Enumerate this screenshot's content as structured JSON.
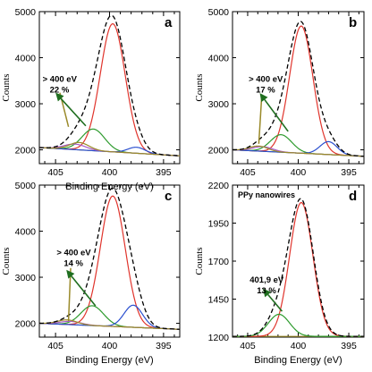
{
  "chart_data": [
    {
      "type": "line",
      "panel": "a",
      "xlabel": "Binding Energy (eV)",
      "ylabel": "Counts",
      "xlim": [
        406.5,
        393.5
      ],
      "ylim": [
        1700,
        5000
      ],
      "xticks": [
        405,
        400,
        395
      ],
      "yticks": [
        2000,
        3000,
        4000,
        5000
      ],
      "annotation": {
        "line1": "> 400 eV",
        "line2": "22 %",
        "x": 406.2,
        "y": 3480
      },
      "arrow": {
        "from": [
          402.2,
          2520
        ],
        "to": [
          405.0,
          3240
        ]
      },
      "guide_line": {
        "from": [
          403.8,
          2500
        ],
        "to": [
          404.6,
          3240
        ]
      },
      "baseline": {
        "x": [
          406.5,
          393.5
        ],
        "y": [
          2050,
          1870
        ]
      },
      "series": [
        {
          "role": "envelope",
          "color": "#000000",
          "dashed": true,
          "peaks": [
            {
              "c": 399.7,
              "h": 2820,
              "w": 1.25
            },
            {
              "c": 401.5,
              "h": 480,
              "w": 1.1
            },
            {
              "c": 403.0,
              "h": 270,
              "w": 1.0
            },
            {
              "c": 397.5,
              "h": 140,
              "w": 0.8
            }
          ]
        },
        {
          "role": "main",
          "color": "#e0342c",
          "peaks": [
            {
              "c": 399.7,
              "h": 2780,
              "w": 1.15
            }
          ]
        },
        {
          "role": "component-1",
          "color": "#2e9b2e",
          "peaks": [
            {
              "c": 401.5,
              "h": 470,
              "w": 1.05
            }
          ]
        },
        {
          "role": "component-2",
          "color": "#2a4fcf",
          "peaks": [
            {
              "c": 397.5,
              "h": 130,
              "w": 0.8
            }
          ]
        },
        {
          "role": "component-3",
          "color": "#a85ac8",
          "peaks": [
            {
              "c": 403.2,
              "h": 120,
              "w": 1.0
            }
          ]
        },
        {
          "role": "component-4",
          "color": "#9a8a2a",
          "peaks": [
            {
              "c": 402.8,
              "h": 160,
              "w": 0.9
            }
          ]
        }
      ]
    },
    {
      "type": "line",
      "panel": "b",
      "xlabel": "",
      "ylabel": "Counts",
      "xlim": [
        406.5,
        393.5
      ],
      "ylim": [
        1700,
        5000
      ],
      "xticks": [
        405,
        400,
        395
      ],
      "yticks": [
        2000,
        3000,
        4000,
        5000
      ],
      "annotation": {
        "line1": "> 400 eV",
        "line2": "17 %",
        "x": 404.9,
        "y": 3480
      },
      "arrow": {
        "from": [
          401.0,
          2400
        ],
        "to": [
          403.8,
          3230
        ]
      },
      "guide_line": {
        "from": [
          403.9,
          2130
        ],
        "to": [
          403.6,
          3200
        ]
      },
      "baseline": {
        "x": [
          406.5,
          393.5
        ],
        "y": [
          2000,
          1860
        ]
      },
      "series": [
        {
          "role": "envelope",
          "color": "#000000",
          "dashed": true,
          "peaks": [
            {
              "c": 399.7,
              "h": 2780,
              "w": 1.25
            },
            {
              "c": 401.7,
              "h": 380,
              "w": 1.1
            },
            {
              "c": 403.5,
              "h": 200,
              "w": 1.0
            },
            {
              "c": 397.0,
              "h": 280,
              "w": 0.9
            }
          ]
        },
        {
          "role": "main",
          "color": "#e0342c",
          "peaks": [
            {
              "c": 399.7,
              "h": 2760,
              "w": 1.15
            }
          ]
        },
        {
          "role": "component-1",
          "color": "#2e9b2e",
          "peaks": [
            {
              "c": 401.7,
              "h": 380,
              "w": 1.05
            }
          ]
        },
        {
          "role": "component-2",
          "color": "#2a4fcf",
          "peaks": [
            {
              "c": 397.0,
              "h": 280,
              "w": 0.85
            }
          ]
        },
        {
          "role": "component-3",
          "color": "#a85ac8",
          "peaks": [
            {
              "c": 403.5,
              "h": 100,
              "w": 1.0
            }
          ]
        },
        {
          "role": "component-4",
          "color": "#9a8a2a",
          "peaks": [
            {
              "c": 403.9,
              "h": 110,
              "w": 0.9
            }
          ]
        }
      ]
    },
    {
      "type": "line",
      "panel": "c",
      "xlabel": "Binding Energy (eV)",
      "ylabel": "Counts",
      "xlim": [
        406.5,
        393.5
      ],
      "ylim": [
        1700,
        5000
      ],
      "xticks": [
        405,
        400,
        395
      ],
      "yticks": [
        2000,
        3000,
        4000,
        5000
      ],
      "annotation": {
        "line1": "> 400 eV",
        "line2": "14 %",
        "x": 404.9,
        "y": 3480
      },
      "arrow": {
        "from": [
          401.3,
          2380
        ],
        "to": [
          404.0,
          3160
        ]
      },
      "guide_line": {
        "from": [
          403.8,
          2050
        ],
        "to": [
          403.6,
          3200
        ]
      },
      "baseline": {
        "x": [
          406.5,
          393.5
        ],
        "y": [
          2000,
          1870
        ]
      },
      "series": [
        {
          "role": "envelope",
          "color": "#000000",
          "dashed": true,
          "peaks": [
            {
              "c": 399.7,
              "h": 2850,
              "w": 1.25
            },
            {
              "c": 401.6,
              "h": 430,
              "w": 1.1
            },
            {
              "c": 403.6,
              "h": 130,
              "w": 1.0
            },
            {
              "c": 397.8,
              "h": 490,
              "w": 0.9
            }
          ]
        },
        {
          "role": "main",
          "color": "#e0342c",
          "peaks": [
            {
              "c": 399.7,
              "h": 2830,
              "w": 1.15
            }
          ]
        },
        {
          "role": "component-1",
          "color": "#2e9b2e",
          "peaks": [
            {
              "c": 401.6,
              "h": 430,
              "w": 1.05
            }
          ]
        },
        {
          "role": "component-2",
          "color": "#2a4fcf",
          "peaks": [
            {
              "c": 397.8,
              "h": 480,
              "w": 0.85
            }
          ]
        },
        {
          "role": "component-3",
          "color": "#a85ac8",
          "peaks": [
            {
              "c": 403.6,
              "h": 70,
              "w": 1.0
            }
          ]
        },
        {
          "role": "component-4",
          "color": "#9a8a2a",
          "peaks": [
            {
              "c": 403.9,
              "h": 100,
              "w": 0.9
            }
          ]
        }
      ]
    },
    {
      "type": "line",
      "panel": "d",
      "title": "PPy nanowires",
      "xlabel": "Binding Energy (eV)",
      "ylabel": "Counts",
      "xlim": [
        406.5,
        393.5
      ],
      "ylim": [
        1200,
        2200
      ],
      "xticks": [
        405,
        400,
        395
      ],
      "yticks": [
        1200,
        1450,
        1700,
        1950,
        2200
      ],
      "annotation": {
        "line1": "401,9 eV",
        "line2": "13 %",
        "x": 404.8,
        "y": 1560
      },
      "arrow": {
        "from": [
          401.6,
          1370
        ],
        "to": [
          403.5,
          1520
        ]
      },
      "baseline": {
        "x": [
          406.5,
          393.5
        ],
        "y": [
          1205,
          1205
        ]
      },
      "series": [
        {
          "role": "envelope",
          "color": "#000000",
          "dashed": true,
          "peaks": [
            {
              "c": 399.7,
              "h": 885,
              "w": 1.2
            },
            {
              "c": 401.9,
              "h": 145,
              "w": 1.1
            }
          ]
        },
        {
          "role": "main",
          "color": "#e0342c",
          "peaks": [
            {
              "c": 399.7,
              "h": 880,
              "w": 1.15
            }
          ]
        },
        {
          "role": "component-1",
          "color": "#2e9b2e",
          "peaks": [
            {
              "c": 401.9,
              "h": 145,
              "w": 1.05
            }
          ]
        }
      ]
    }
  ]
}
